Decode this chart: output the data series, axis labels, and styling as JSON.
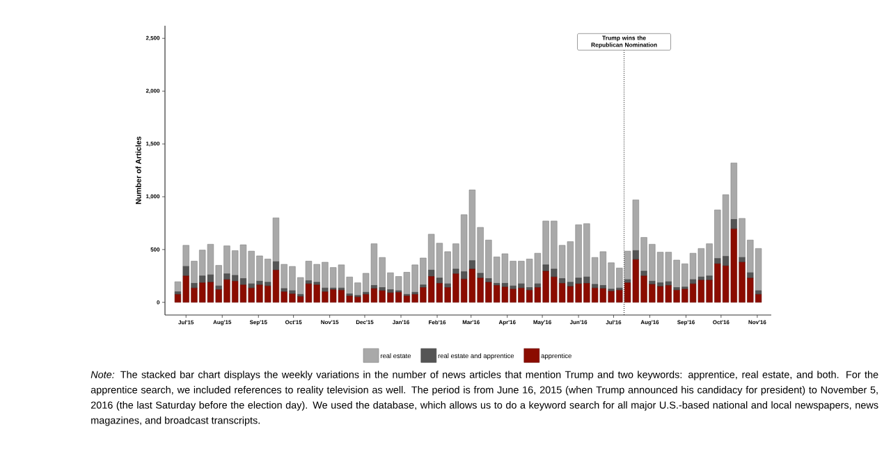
{
  "chart_data": {
    "type": "bar",
    "stacked": true,
    "ylabel": "Number of Articles",
    "x": [
      "2015-06-24",
      "2015-07-01",
      "2015-07-08",
      "2015-07-15",
      "2015-07-22",
      "2015-07-29",
      "2015-08-05",
      "2015-08-12",
      "2015-08-19",
      "2015-08-26",
      "2015-09-02",
      "2015-09-09",
      "2015-09-16",
      "2015-09-23",
      "2015-09-30",
      "2015-10-07",
      "2015-10-14",
      "2015-10-21",
      "2015-10-28",
      "2015-11-04",
      "2015-11-11",
      "2015-11-18",
      "2015-11-25",
      "2015-12-02",
      "2015-12-09",
      "2015-12-16",
      "2015-12-23",
      "2015-12-30",
      "2016-01-06",
      "2016-01-13",
      "2016-01-20",
      "2016-01-27",
      "2016-02-03",
      "2016-02-10",
      "2016-02-17",
      "2016-02-24",
      "2016-03-02",
      "2016-03-09",
      "2016-03-16",
      "2016-03-23",
      "2016-03-30",
      "2016-04-06",
      "2016-04-13",
      "2016-04-20",
      "2016-04-27",
      "2016-05-04",
      "2016-05-11",
      "2016-05-18",
      "2016-05-25",
      "2016-06-01",
      "2016-06-08",
      "2016-06-15",
      "2016-06-22",
      "2016-06-29",
      "2016-07-06",
      "2016-07-13",
      "2016-07-20",
      "2016-07-27",
      "2016-08-03",
      "2016-08-10",
      "2016-08-17",
      "2016-08-24",
      "2016-08-31",
      "2016-09-07",
      "2016-09-14",
      "2016-09-21",
      "2016-09-28",
      "2016-10-05",
      "2016-10-12",
      "2016-10-19",
      "2016-10-26",
      "2016-11-02"
    ],
    "xlim": [
      "2015-06-13",
      "2016-11-13"
    ],
    "xticks": [
      {
        "value": "2015-07-01",
        "label": "Jul'15"
      },
      {
        "value": "2015-08-01",
        "label": "Aug'15"
      },
      {
        "value": "2015-09-01",
        "label": "Sep'15"
      },
      {
        "value": "2015-10-01",
        "label": "Oct'15"
      },
      {
        "value": "2015-11-01",
        "label": "Nov'15"
      },
      {
        "value": "2015-12-01",
        "label": "Dec'15"
      },
      {
        "value": "2016-01-01",
        "label": "Jan'16"
      },
      {
        "value": "2016-02-01",
        "label": "Feb'16"
      },
      {
        "value": "2016-03-01",
        "label": "Mar'16"
      },
      {
        "value": "2016-04-01",
        "label": "Apr'16"
      },
      {
        "value": "2016-05-01",
        "label": "May'16"
      },
      {
        "value": "2016-06-01",
        "label": "Jun'16"
      },
      {
        "value": "2016-07-01",
        "label": "Jul'16"
      },
      {
        "value": "2016-08-01",
        "label": "Aug'16"
      },
      {
        "value": "2016-09-01",
        "label": "Sep'16"
      },
      {
        "value": "2016-10-01",
        "label": "Oct'16"
      },
      {
        "value": "2016-11-01",
        "label": "Nov'16"
      }
    ],
    "ylim": [
      -120,
      2620
    ],
    "yticks": [
      0,
      500,
      {
        "value": 1000,
        "label": "1,000"
      },
      {
        "value": 1500,
        "label": "1,500"
      },
      {
        "value": 2000,
        "label": "2,000"
      },
      {
        "value": 2500,
        "label": "2,500"
      }
    ],
    "series": [
      {
        "name": "apprentice",
        "color": "#8b0c00",
        "values": [
          75,
          250,
          135,
          185,
          190,
          120,
          215,
          200,
          165,
          135,
          165,
          155,
          305,
          100,
          80,
          55,
          175,
          165,
          100,
          120,
          115,
          60,
          50,
          75,
          130,
          110,
          90,
          95,
          60,
          75,
          140,
          245,
          180,
          140,
          270,
          220,
          315,
          230,
          190,
          160,
          145,
          125,
          135,
          115,
          140,
          295,
          240,
          180,
          150,
          175,
          180,
          135,
          130,
          105,
          115,
          185,
          405,
          250,
          170,
          150,
          160,
          115,
          125,
          175,
          210,
          210,
          365,
          345,
          695,
          380,
          230,
          75
        ]
      },
      {
        "name": "real estate and apprentice",
        "color": "#555555",
        "values": [
          25,
          90,
          45,
          65,
          70,
          35,
          55,
          55,
          60,
          40,
          35,
          35,
          80,
          30,
          30,
          20,
          30,
          25,
          35,
          15,
          20,
          20,
          15,
          20,
          30,
          30,
          30,
          15,
          15,
          20,
          25,
          60,
          50,
          35,
          45,
          70,
          80,
          45,
          35,
          20,
          35,
          30,
          40,
          25,
          35,
          60,
          75,
          45,
          40,
          55,
          60,
          35,
          30,
          20,
          20,
          30,
          85,
          45,
          30,
          35,
          35,
          25,
          20,
          40,
          30,
          40,
          50,
          90,
          90,
          45,
          50,
          35
        ]
      },
      {
        "name": "real estate",
        "color": "#a9a9a9",
        "values": [
          95,
          200,
          210,
          245,
          290,
          195,
          265,
          235,
          320,
          310,
          240,
          220,
          415,
          230,
          230,
          160,
          185,
          170,
          245,
          195,
          220,
          160,
          120,
          180,
          395,
          285,
          160,
          135,
          210,
          260,
          255,
          340,
          330,
          305,
          240,
          540,
          670,
          435,
          365,
          250,
          280,
          235,
          215,
          270,
          290,
          415,
          455,
          315,
          385,
          505,
          505,
          255,
          320,
          250,
          190,
          270,
          480,
          320,
          350,
          290,
          280,
          260,
          220,
          250,
          270,
          305,
          460,
          585,
          535,
          370,
          310,
          400
        ]
      }
    ],
    "legend": "bottom",
    "ref_lines": [
      {
        "axis": "x",
        "value": "2016-07-10",
        "label": "Trump wins the Republican Nomination",
        "line_style": "dotted"
      }
    ],
    "annotations": [
      "*Note:* The stacked bar chart displays the weekly variations in the number of news articles that mention Trump and two keywords: apprentice, real estate, and both. For the apprentice search, we included references to reality television as well. The period is from June 16, 2015 (when Trump announced his candidacy for president) to November 5, 2016 (the last Saturday before the election day). We used the database, which allows us to do a keyword search for all major U.S.-based national and local newspapers, news magazines, and broadcast transcripts."
    ]
  }
}
